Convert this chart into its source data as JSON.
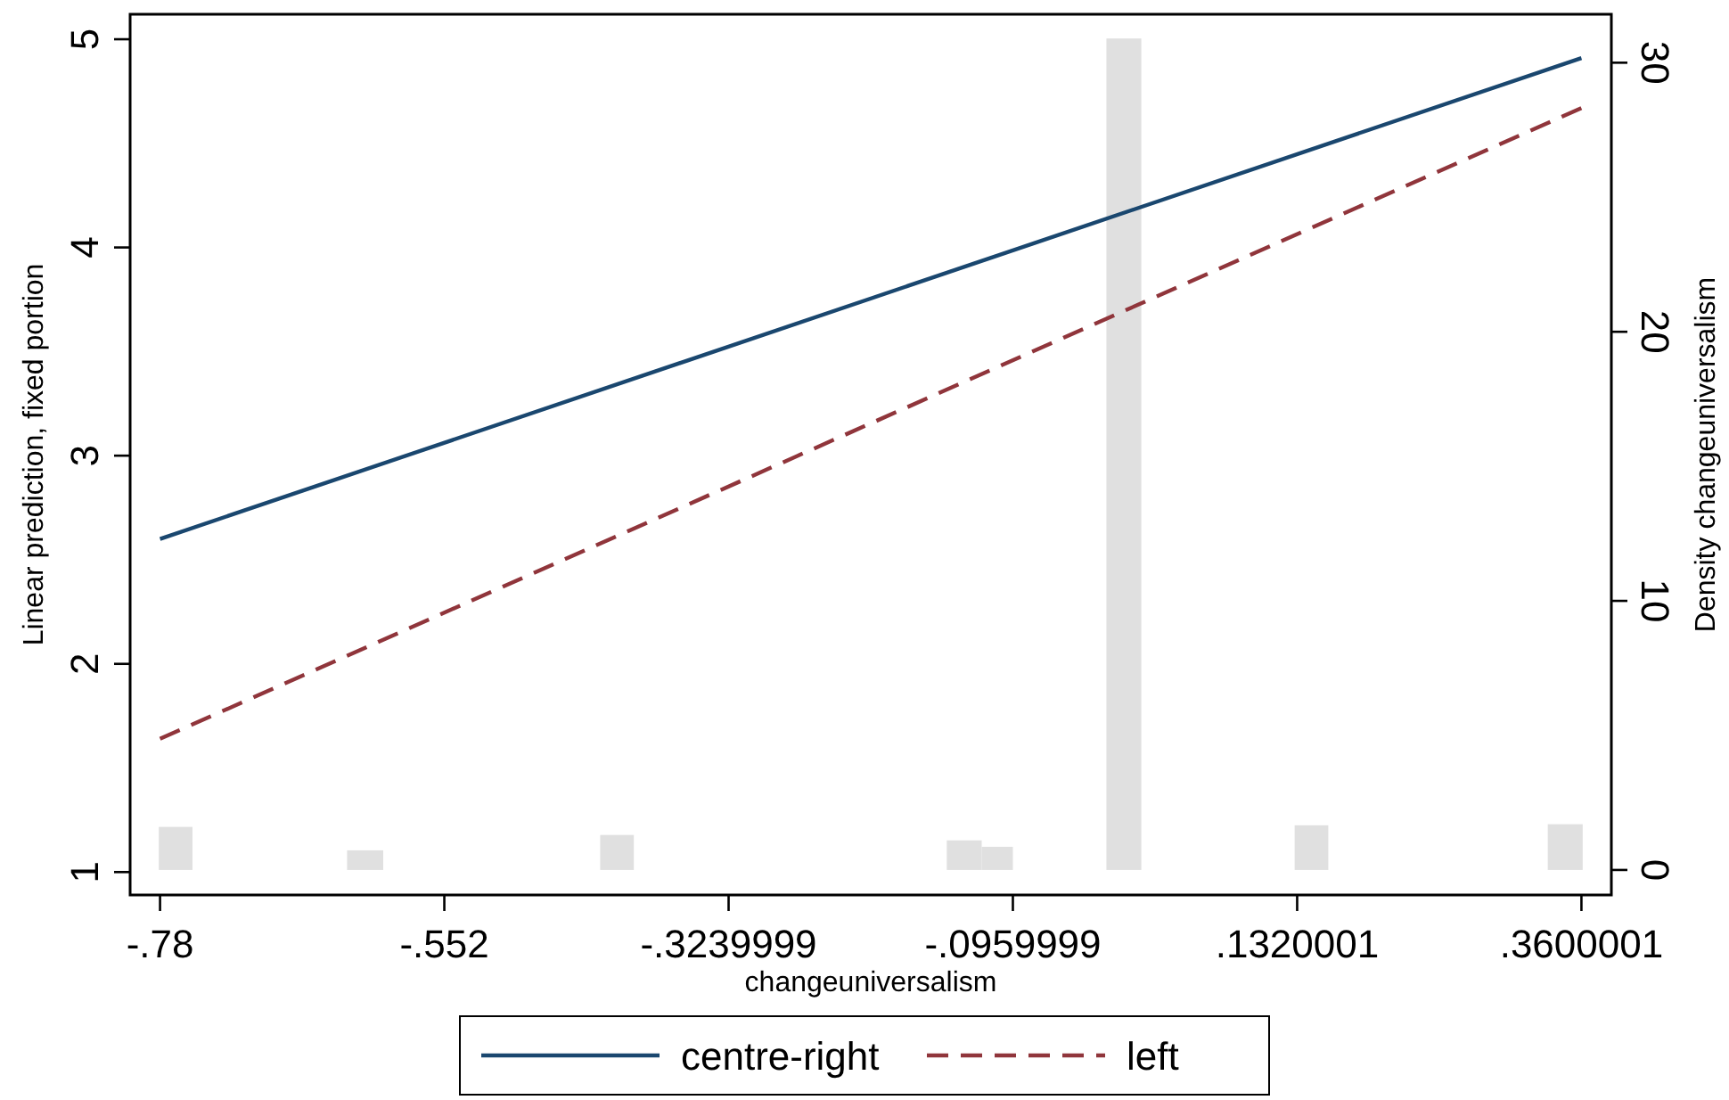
{
  "chart_data": {
    "type": "line",
    "xlabel": "changeuniversalism",
    "ylabel": "Linear prediction, fixed portion",
    "y2label": "Density changeuniversalism",
    "xlim": [
      -0.804,
      0.384
    ],
    "ylim": [
      0.89,
      5.12
    ],
    "y2lim": [
      -0.93,
      31.8
    ],
    "xticks": [
      {
        "value": -0.78,
        "label": "-.78"
      },
      {
        "value": -0.552,
        "label": "-.552"
      },
      {
        "value": -0.3239999,
        "label": "-.3239999"
      },
      {
        "value": -0.0959999,
        "label": "-.0959999"
      },
      {
        "value": 0.1320001,
        "label": ".1320001"
      },
      {
        "value": 0.3600001,
        "label": ".3600001"
      }
    ],
    "yticks": [
      1,
      2,
      3,
      4,
      5
    ],
    "y2ticks": [
      0,
      10,
      20,
      30
    ],
    "x": [
      -0.78,
      0.3600001
    ],
    "grid": false,
    "legend": "bottom",
    "series": [
      {
        "type": "histogram",
        "axis": "y2",
        "color": "#e0e0e0",
        "bins": [
          -0.781,
          -0.754,
          -0.63,
          -0.601,
          -0.427,
          -0.4,
          -0.149,
          -0.121,
          -0.096,
          -0.021,
          0.007,
          0.13,
          0.157,
          0.333,
          0.361
        ],
        "values": [
          1.6,
          0,
          0.73,
          0,
          1.3,
          0,
          1.1,
          0.86,
          0,
          30.9,
          0,
          1.66,
          0,
          1.7
        ]
      },
      {
        "name": "centre-right",
        "color": "#1a476f",
        "line_style": "solid",
        "values": [
          2.6,
          4.91
        ]
      },
      {
        "name": "left",
        "color": "#90353b",
        "line_style": "dashed",
        "values": [
          1.64,
          4.67
        ]
      }
    ]
  }
}
